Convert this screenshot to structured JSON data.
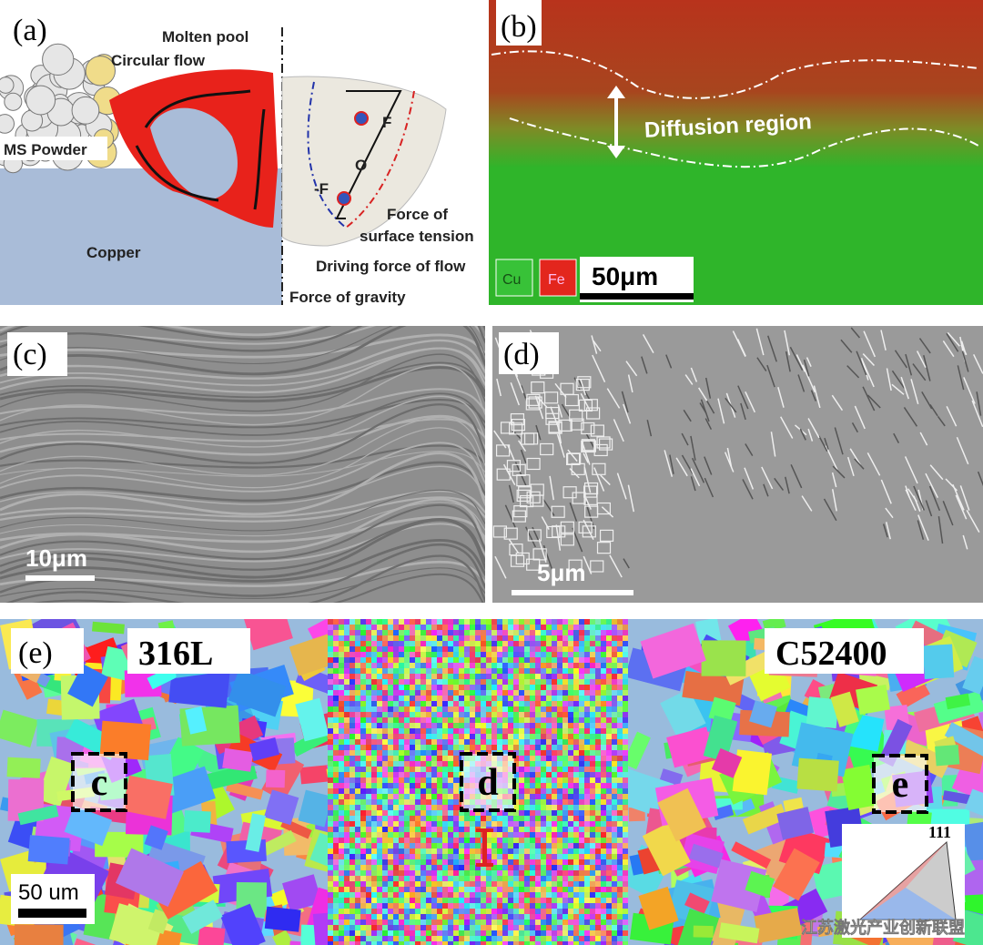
{
  "panels": {
    "a": {
      "label": "(a)",
      "molten_pool": "Molten pool",
      "circular_flow": "Circular flow",
      "powder": "MS Powder",
      "substrate": "Copper",
      "force_plus": "F",
      "origin": "O",
      "force_minus": "-F",
      "surface_tension": [
        "Force of",
        "surface tension"
      ],
      "driving_force": "Driving force of flow",
      "gravity": "Force of gravity"
    },
    "b": {
      "label": "(b)",
      "region": "Diffusion region",
      "legend": [
        "Cu",
        "Fe"
      ],
      "scale_bar": "50μm"
    },
    "c": {
      "label": "(c)",
      "scale_bar": "10μm"
    },
    "d": {
      "label": "(d)",
      "scale_bar": "5μm"
    },
    "e": {
      "label": "(e)",
      "left_material": "316L",
      "right_material": "C52400",
      "boxes": [
        "c",
        "d",
        "e"
      ],
      "ipf_corner": "111",
      "scale_bar": "50 um"
    }
  },
  "watermark": "江苏激光产业创新联盟"
}
